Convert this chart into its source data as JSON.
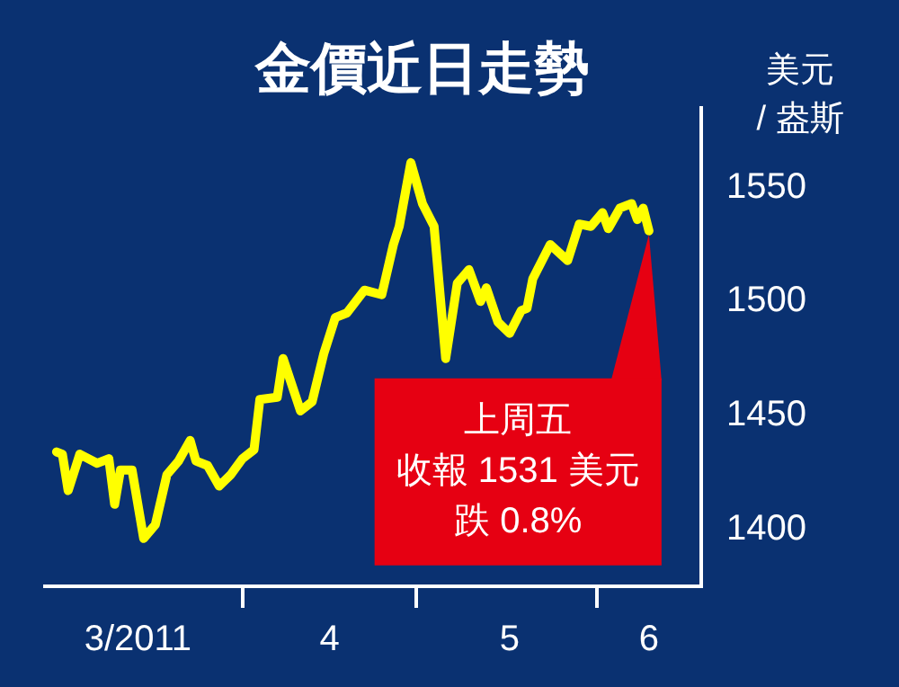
{
  "chart_data": {
    "type": "line",
    "title": "金價近日走勢",
    "ylabel": "美元\n/ 盎斯",
    "x": [
      "2011-02-28",
      "2011-03-01",
      "2011-03-02",
      "2011-03-04",
      "2011-03-07",
      "2011-03-09",
      "2011-03-10",
      "2011-03-11",
      "2011-03-13",
      "2011-03-15",
      "2011-03-17",
      "2011-03-19",
      "2011-03-21",
      "2011-03-23",
      "2011-03-24",
      "2011-03-26",
      "2011-03-28",
      "2011-03-30",
      "2011-04-01",
      "2011-04-03",
      "2011-04-04",
      "2011-04-07",
      "2011-04-08",
      "2011-04-11",
      "2011-04-13",
      "2011-04-15",
      "2011-04-17",
      "2011-04-19",
      "2011-04-22",
      "2011-04-25",
      "2011-04-27",
      "2011-04-28",
      "2011-04-30",
      "2011-05-02",
      "2011-05-04",
      "2011-05-06",
      "2011-05-08",
      "2011-05-10",
      "2011-05-12",
      "2011-05-13",
      "2011-05-15",
      "2011-05-17",
      "2011-05-19",
      "2011-05-20",
      "2011-05-21",
      "2011-05-24",
      "2011-05-27",
      "2011-05-29",
      "2011-05-31",
      "2011-06-02",
      "2011-06-03",
      "2011-06-05",
      "2011-06-07",
      "2011-06-08",
      "2011-06-09",
      "2011-06-10"
    ],
    "series": [
      {
        "color": "#ffff00",
        "values": [
          1434,
          1433,
          1417,
          1433,
          1429,
          1431,
          1411,
          1426,
          1426,
          1396,
          1402,
          1424,
          1430,
          1439,
          1430,
          1428,
          1419,
          1424,
          1431,
          1435,
          1457,
          1458,
          1475,
          1452,
          1456,
          1477,
          1493,
          1495,
          1505,
          1503,
          1525,
          1533,
          1561,
          1543,
          1533,
          1475,
          1508,
          1514,
          1500,
          1506,
          1491,
          1486,
          1496,
          1497,
          1510,
          1525,
          1518,
          1534,
          1533,
          1539,
          1532,
          1541,
          1543,
          1536,
          1541,
          1531
        ]
      }
    ],
    "xlim": [
      "2011-02-26",
      "2011-06-19"
    ],
    "xticks": [
      {
        "value": "2011-03-14",
        "label": "3/2011"
      },
      {
        "value": "2011-04-01",
        "label": null
      },
      {
        "value": "2011-04-16",
        "label": "4"
      },
      {
        "value": "2011-05-01",
        "label": null
      },
      {
        "value": "2011-05-17",
        "label": "5"
      },
      {
        "value": "2011-06-01",
        "label": null
      },
      {
        "value": "2011-06-10",
        "label": "6"
      }
    ],
    "ylim": [
      1375,
      1585
    ],
    "yticks": [
      1400,
      1450,
      1500,
      1550
    ],
    "annotations": [
      {
        "text": "上周五",
        "x": "2011-06-10",
        "y": 1531
      },
      "收報 1531 美元",
      "跌 0.8%"
    ],
    "grid": false,
    "legend": false,
    "marker": "none",
    "line_style": "solid"
  }
}
